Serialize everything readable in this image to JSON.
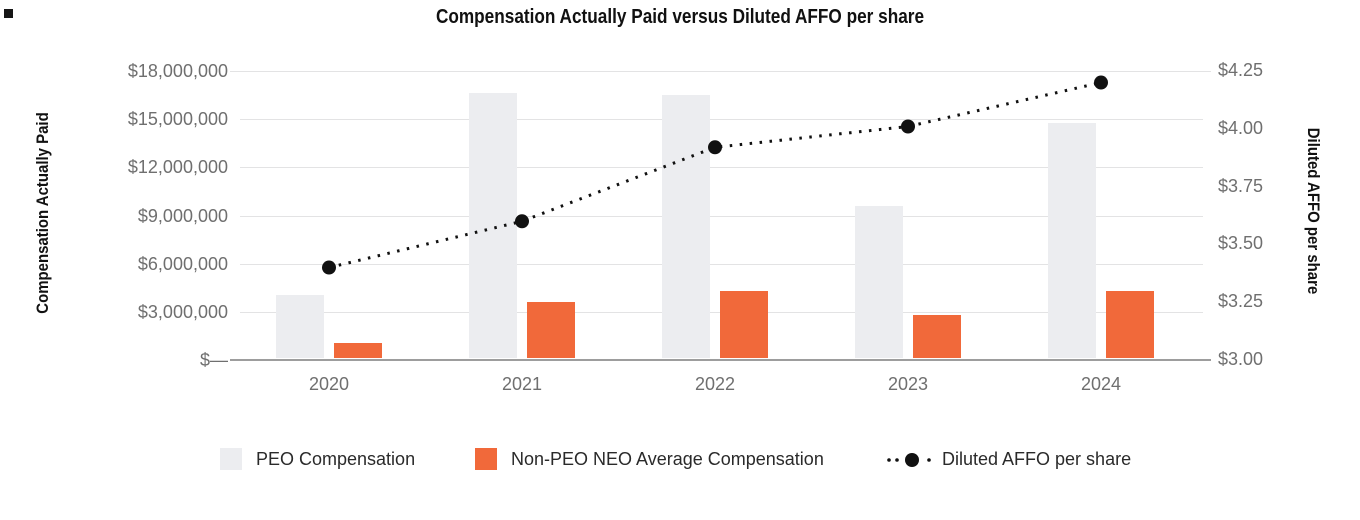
{
  "title": "Compensation Actually Paid versus Diluted AFFO per share",
  "colors": {
    "peo_bar": "#ECEDF0",
    "non_peo_bar": "#F1693A",
    "affo_line": "#111111",
    "gridline": "#E3E3E4",
    "axis_line": "#9D9D9D",
    "tick_label": "#6F6F6F"
  },
  "left_axis": {
    "title": "Compensation Actually Paid",
    "tick_labels": [
      "$18,000,000",
      "$15,000,000",
      "$12,000,000",
      "$9,000,000",
      "$6,000,000",
      "$3,000,000",
      "$—"
    ],
    "min": 0,
    "max": 18000000
  },
  "right_axis": {
    "title": "Diluted AFFO per share",
    "tick_labels": [
      "$4.25",
      "$4.00",
      "$3.75",
      "$3.50",
      "$3.25",
      "$3.00"
    ],
    "min": 3.0,
    "max": 4.25
  },
  "chart_data": {
    "type": "bar",
    "categories": [
      "2020",
      "2021",
      "2022",
      "2023",
      "2024"
    ],
    "series": [
      {
        "name": "PEO Compensation",
        "type": "bar",
        "axis": "left",
        "color": "#ECEDF0",
        "values": [
          3900000,
          16500000,
          16400000,
          9450000,
          14650000
        ]
      },
      {
        "name": "Non-PEO NEO Average Compensation",
        "type": "bar",
        "axis": "left",
        "color": "#F1693A",
        "values": [
          950000,
          3500000,
          4200000,
          2700000,
          4150000
        ]
      },
      {
        "name": "Diluted AFFO per share",
        "type": "line",
        "line_style": "dotted",
        "marker": "circle",
        "axis": "right",
        "color": "#111111",
        "values": [
          3.4,
          3.6,
          3.92,
          4.01,
          4.2
        ]
      }
    ],
    "title": "Compensation Actually Paid versus Diluted AFFO per share",
    "xlabel": "",
    "ylabel_left": "Compensation Actually Paid",
    "ylabel_right": "Diluted AFFO per share",
    "ylim_left": [
      0,
      18000000
    ],
    "ylim_right": [
      3.0,
      4.25
    ],
    "grid": true,
    "legend_position": "bottom"
  },
  "legend": {
    "items": [
      {
        "label": "PEO Compensation",
        "swatch": "square",
        "color": "#ECEDF0"
      },
      {
        "label": "Non-PEO NEO Average Compensation",
        "swatch": "square",
        "color": "#F1693A"
      },
      {
        "label": "Diluted AFFO per share",
        "swatch": "dotted-line-with-marker",
        "color": "#111111"
      }
    ]
  }
}
